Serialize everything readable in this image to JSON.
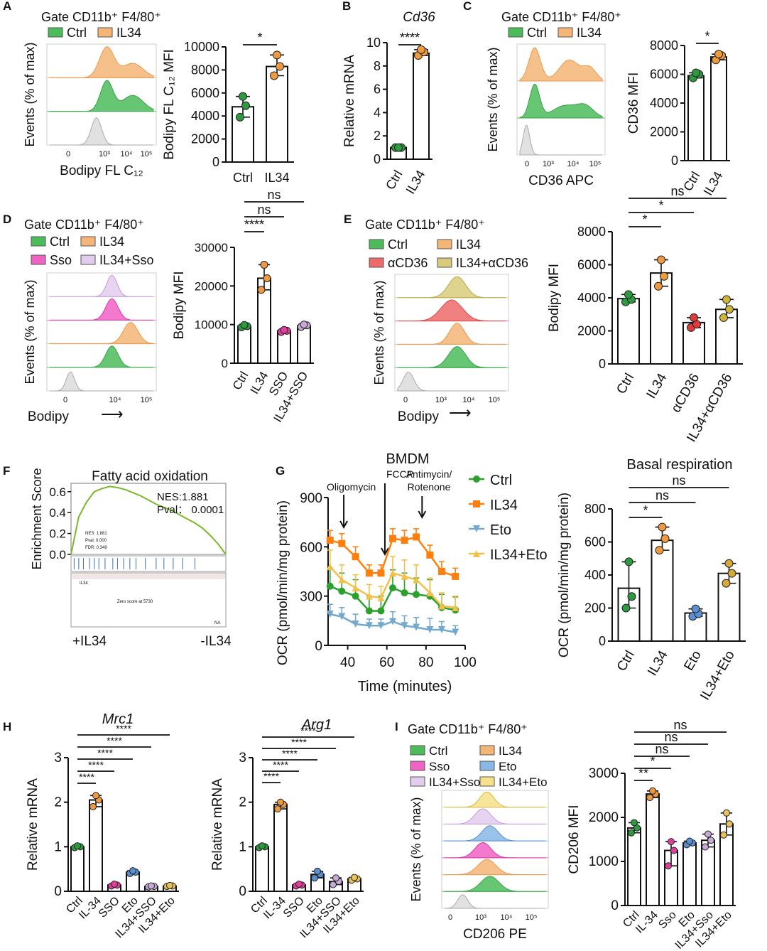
{
  "chart_data": [
    {
      "type": "histogram",
      "panel": "A",
      "title": "Gate CD11b⁺ F4/80⁺",
      "legend": [
        {
          "name": "Ctrl",
          "color": "#4cbc5a"
        },
        {
          "name": "IL34",
          "color": "#f5b577"
        }
      ],
      "xlabel": "Bodipy FL C₁₂",
      "ylabel": "Events (% of max)",
      "x_ticks": [
        "0",
        "10³",
        "10⁴",
        "10⁵"
      ]
    },
    {
      "type": "bar",
      "panel": "A",
      "categories": [
        "Ctrl",
        "IL34"
      ],
      "values": [
        4800,
        8300
      ],
      "points": [
        [
          3900,
          4900,
          5700
        ],
        [
          7500,
          8300,
          9300
        ]
      ],
      "colors": [
        "#2e9a40",
        "#ef9a3e"
      ],
      "ylabel": "Bodipy FL C₁₂ MFI",
      "ylim": [
        0,
        10000
      ],
      "yticks": [
        0,
        2000,
        4000,
        6000,
        8000,
        10000
      ],
      "significance": [
        {
          "label": "*",
          "from": 0,
          "to": 1
        }
      ]
    },
    {
      "type": "bar",
      "panel": "B",
      "title": "Cd36",
      "categories": [
        "Ctrl",
        "IL34"
      ],
      "values": [
        1.0,
        9.1
      ],
      "points": [
        [
          1.0,
          1.0,
          1.0
        ],
        [
          8.9,
          9.2,
          9.4
        ]
      ],
      "colors": [
        "#2e9a40",
        "#ef9a3e"
      ],
      "ylabel": "Relative mRNA",
      "ylim": [
        0,
        10
      ],
      "yticks": [
        0,
        2,
        4,
        6,
        8,
        10
      ],
      "significance": [
        {
          "label": "****",
          "from": 0,
          "to": 1
        }
      ]
    },
    {
      "type": "histogram",
      "panel": "C",
      "title": "Gate CD11b⁺ F4/80⁺",
      "legend": [
        {
          "name": "Ctrl",
          "color": "#4cbc5a"
        },
        {
          "name": "IL34",
          "color": "#f5b577"
        }
      ],
      "xlabel": "CD36 APC",
      "ylabel": "Events (% of max)",
      "x_ticks": [
        "0",
        "10³",
        "10⁴",
        "10⁵"
      ]
    },
    {
      "type": "bar",
      "panel": "C",
      "categories": [
        "Ctrl",
        "IL34"
      ],
      "values": [
        5900,
        7200
      ],
      "points": [
        [
          5750,
          6000,
          6100
        ],
        [
          7000,
          7300,
          7400
        ]
      ],
      "colors": [
        "#2e9a40",
        "#ef9a3e"
      ],
      "ylabel": "CD36 MFI",
      "ylim": [
        0,
        8000
      ],
      "yticks": [
        0,
        2000,
        4000,
        6000,
        8000
      ],
      "significance": [
        {
          "label": "*",
          "from": 0,
          "to": 1
        }
      ]
    },
    {
      "type": "histogram",
      "panel": "D",
      "title": "Gate CD11b⁺ F4/80⁺",
      "legend": [
        {
          "name": "Ctrl",
          "color": "#4cbc5a"
        },
        {
          "name": "IL34",
          "color": "#f5b577"
        },
        {
          "name": "Sso",
          "color": "#f062c4"
        },
        {
          "name": "IL34+Sso",
          "color": "#e3cdee"
        }
      ],
      "xlabel": "Bodipy",
      "ylabel": "Events (% of max)",
      "x_ticks": [
        "0",
        "10⁴",
        "10⁵"
      ]
    },
    {
      "type": "bar",
      "panel": "D",
      "categories": [
        "Ctrl",
        "IL34",
        "SSO",
        "IL34+SSO"
      ],
      "values": [
        9600,
        22000,
        8400,
        9700
      ],
      "points": [
        [
          9300,
          9600,
          9900
        ],
        [
          19000,
          22000,
          25500
        ],
        [
          8100,
          8400,
          8600
        ],
        [
          9400,
          9800,
          10000
        ]
      ],
      "colors": [
        "#2e9a40",
        "#ef9a3e",
        "#e0409c",
        "#c7a9d6"
      ],
      "ylabel": "Bodipy MFI",
      "ylim": [
        0,
        30000
      ],
      "yticks": [
        0,
        10000,
        20000,
        30000
      ],
      "significance": [
        {
          "label": "****",
          "from": 0,
          "to": 1
        },
        {
          "label": "ns",
          "from": 0,
          "to": 2
        },
        {
          "label": "ns",
          "from": 0,
          "to": 3
        }
      ]
    },
    {
      "type": "histogram",
      "panel": "E",
      "title": "Gate CD11b⁺ F4/80⁺",
      "legend": [
        {
          "name": "Ctrl",
          "color": "#4cbc5a"
        },
        {
          "name": "IL34",
          "color": "#f5b577"
        },
        {
          "name": "αCD36",
          "color": "#ee6b6b"
        },
        {
          "name": "IL34+αCD36",
          "color": "#d8cc7c"
        }
      ],
      "xlabel": "Bodipy",
      "ylabel": "Events (% of max)",
      "x_ticks": [
        "0",
        "10³",
        "10⁴",
        "10⁵"
      ]
    },
    {
      "type": "bar",
      "panel": "E",
      "categories": [
        "Ctrl",
        "IL34",
        "αCD36",
        "IL34+αCD36"
      ],
      "values": [
        3950,
        5500,
        2500,
        3300
      ],
      "points": [
        [
          3750,
          3900,
          4200
        ],
        [
          4700,
          5300,
          6300
        ],
        [
          2200,
          2400,
          2800
        ],
        [
          2800,
          3300,
          3900
        ]
      ],
      "colors": [
        "#2e9a40",
        "#ef9a3e",
        "#e03b3b",
        "#cdb43a"
      ],
      "ylabel": "Bodipy MFI",
      "ylim": [
        0,
        8000
      ],
      "yticks": [
        0,
        2000,
        4000,
        6000,
        8000
      ],
      "significance": [
        {
          "label": "*",
          "from": 0,
          "to": 1
        },
        {
          "label": "*",
          "from": 0,
          "to": 2
        },
        {
          "label": "ns",
          "from": 0,
          "to": 3
        }
      ]
    },
    {
      "type": "line",
      "panel": "F",
      "title": "Fatty acid oxidation",
      "ylabel": "Enrichment Score",
      "yticks": [
        0.0,
        0.2,
        0.4,
        0.6
      ],
      "ylim": [
        0,
        0.68
      ],
      "annotations": [
        "NES:1.881",
        "Pval： 0.0001"
      ],
      "small_text": [
        "NES: 1.881",
        "Pval: 0.000",
        "FDR: 0.349",
        "Zero score at 5730",
        "IL34",
        "NA"
      ],
      "x_ends": [
        "+IL34",
        "-IL34"
      ],
      "x": [
        0,
        1,
        2,
        3,
        4,
        5,
        6,
        7,
        8,
        9,
        10,
        11,
        12,
        13,
        14,
        15,
        16,
        17,
        18,
        19,
        20
      ],
      "values": [
        0.0,
        0.36,
        0.5,
        0.6,
        0.63,
        0.65,
        0.64,
        0.62,
        0.59,
        0.56,
        0.52,
        0.48,
        0.45,
        0.42,
        0.38,
        0.34,
        0.3,
        0.25,
        0.18,
        0.1,
        0.0
      ]
    },
    {
      "type": "line",
      "panel": "G",
      "title": "BMDM",
      "xlabel": "Time (minutes)",
      "ylabel": "OCR (pmol/min/mg protein)",
      "xlim": [
        30,
        100
      ],
      "xticks": [
        40,
        60,
        80,
        100
      ],
      "ylim": [
        0,
        900
      ],
      "yticks": [
        0,
        300,
        600,
        900
      ],
      "annotations": [
        {
          "label": "Oligomycin",
          "x": 38
        },
        {
          "label": "FCCP",
          "x": 59
        },
        {
          "label": "Antimycin/ Rotenone",
          "x": 78
        }
      ],
      "x": [
        31,
        37,
        44,
        51,
        57,
        63,
        69,
        75,
        82,
        88,
        95
      ],
      "series": [
        {
          "name": "Ctrl",
          "color": "#2ca02c",
          "marker": "circle",
          "values": [
            360,
            330,
            300,
            210,
            210,
            350,
            320,
            310,
            300,
            230,
            215
          ],
          "err": [
            110,
            110,
            100,
            90,
            90,
            110,
            120,
            100,
            100,
            80,
            80
          ]
        },
        {
          "name": "IL34",
          "color": "#ff7f0e",
          "marker": "square",
          "values": [
            640,
            620,
            540,
            440,
            440,
            650,
            640,
            660,
            550,
            450,
            420
          ],
          "err": [
            60,
            60,
            60,
            50,
            50,
            60,
            60,
            50,
            60,
            60,
            50
          ]
        },
        {
          "name": "Eto",
          "color": "#74a9cf",
          "marker": "triangle-down",
          "values": [
            190,
            175,
            130,
            120,
            120,
            145,
            120,
            110,
            95,
            95,
            80
          ],
          "err": [
            60,
            55,
            60,
            40,
            40,
            60,
            60,
            60,
            70,
            50,
            40
          ]
        },
        {
          "name": "IL34+Eto",
          "color": "#f2c14b",
          "marker": "triangle",
          "values": [
            480,
            400,
            350,
            300,
            290,
            440,
            420,
            400,
            320,
            240,
            230
          ],
          "err": [
            100,
            90,
            80,
            70,
            70,
            100,
            100,
            90,
            90,
            80,
            70
          ]
        }
      ]
    },
    {
      "type": "bar",
      "panel": "G",
      "title": "Basal respiration",
      "categories": [
        "Ctrl",
        "IL34",
        "Eto",
        "IL34+Eto"
      ],
      "values": [
        320,
        610,
        170,
        410
      ],
      "points": [
        [
          200,
          270,
          480
        ],
        [
          550,
          620,
          690
        ],
        [
          150,
          165,
          195
        ],
        [
          350,
          410,
          470
        ]
      ],
      "colors": [
        "#2e9a40",
        "#ef9a3e",
        "#5b8fd0",
        "#d6a93a"
      ],
      "ylabel": "OCR (pmol/min/mg protein)",
      "ylim": [
        0,
        800
      ],
      "yticks": [
        0,
        200,
        400,
        600,
        800
      ],
      "significance": [
        {
          "label": "*",
          "from": 0,
          "to": 1
        },
        {
          "label": "ns",
          "from": 0,
          "to": 2
        },
        {
          "label": "ns",
          "from": 0,
          "to": 3
        }
      ]
    },
    {
      "type": "bar",
      "panel": "H",
      "title": "Mrc1",
      "categories": [
        "Ctrl",
        "IL-34",
        "SSO",
        "Eto",
        "IL34+SSO",
        "IL34+Eto"
      ],
      "values": [
        1.0,
        2.05,
        0.14,
        0.43,
        0.11,
        0.12
      ],
      "points": [
        [
          0.98,
          1.0,
          1.02
        ],
        [
          1.9,
          2.05,
          2.15
        ],
        [
          0.12,
          0.14,
          0.16
        ],
        [
          0.4,
          0.43,
          0.46
        ],
        [
          0.1,
          0.11,
          0.12
        ],
        [
          0.11,
          0.12,
          0.13
        ]
      ],
      "colors": [
        "#2e9a40",
        "#ef9a3e",
        "#e0409c",
        "#5b8fd0",
        "#c7a9d6",
        "#e8c35a"
      ],
      "ylabel": "Relative mRNA",
      "ylim": [
        0,
        3
      ],
      "yticks": [
        0,
        1,
        2,
        3
      ],
      "significance": [
        {
          "label": "****",
          "from": 0,
          "to": 1
        },
        {
          "label": "****",
          "from": 0,
          "to": 2
        },
        {
          "label": "****",
          "from": 0,
          "to": 3
        },
        {
          "label": "****",
          "from": 0,
          "to": 4
        },
        {
          "label": "****",
          "from": 0,
          "to": 5
        }
      ]
    },
    {
      "type": "bar",
      "panel": "H",
      "title": "Arg1",
      "categories": [
        "Ctrl",
        "IL-34",
        "SSO",
        "Eto",
        "IL34+SSO",
        "IL34+Eto"
      ],
      "values": [
        1.0,
        1.95,
        0.14,
        0.38,
        0.22,
        0.28
      ],
      "points": [
        [
          0.98,
          1.0,
          1.02
        ],
        [
          1.85,
          1.95,
          2.0
        ],
        [
          0.12,
          0.14,
          0.16
        ],
        [
          0.3,
          0.38,
          0.45
        ],
        [
          0.15,
          0.22,
          0.3
        ],
        [
          0.25,
          0.28,
          0.31
        ]
      ],
      "colors": [
        "#2e9a40",
        "#ef9a3e",
        "#e0409c",
        "#5b8fd0",
        "#c7a9d6",
        "#e8c35a"
      ],
      "ylabel": "Relative mRNA",
      "ylim": [
        0,
        3
      ],
      "yticks": [
        0,
        1,
        2,
        3
      ],
      "significance": [
        {
          "label": "****",
          "from": 0,
          "to": 1
        },
        {
          "label": "****",
          "from": 0,
          "to": 2
        },
        {
          "label": "****",
          "from": 0,
          "to": 3
        },
        {
          "label": "****",
          "from": 0,
          "to": 4
        },
        {
          "label": "****",
          "from": 0,
          "to": 5
        }
      ]
    },
    {
      "type": "histogram",
      "panel": "I",
      "title": "Gate CD11b⁺ F4/80⁺",
      "legend": [
        {
          "name": "Ctrl",
          "color": "#4cbc5a"
        },
        {
          "name": "IL34",
          "color": "#f5b577"
        },
        {
          "name": "Sso",
          "color": "#f062c4"
        },
        {
          "name": "Eto",
          "color": "#8ab8e6"
        },
        {
          "name": "IL34+Sso",
          "color": "#e3cdee"
        },
        {
          "name": "IL34+Eto",
          "color": "#f6e08a"
        }
      ],
      "xlabel": "CD206 PE",
      "ylabel": "Events (% of max)",
      "x_ticks": [
        "0",
        "10³",
        "10⁴",
        "10⁵"
      ]
    },
    {
      "type": "bar",
      "panel": "I",
      "categories": [
        "Ctrl",
        "IL-34",
        "Sso",
        "Eto",
        "IL34+Sso",
        "IL34+Eto"
      ],
      "values": [
        1760,
        2530,
        1250,
        1420,
        1480,
        1850
      ],
      "points": [
        [
          1650,
          1760,
          1880
        ],
        [
          2450,
          2530,
          2600
        ],
        [
          900,
          1250,
          1450
        ],
        [
          1380,
          1420,
          1460
        ],
        [
          1330,
          1480,
          1620
        ],
        [
          1600,
          1850,
          2100
        ]
      ],
      "colors": [
        "#2e9a40",
        "#ef9a3e",
        "#e0409c",
        "#5b8fd0",
        "#c7a9d6",
        "#e8c35a"
      ],
      "ylabel": "CD206 MFI",
      "ylim": [
        0,
        3000
      ],
      "yticks": [
        0,
        1000,
        2000,
        3000
      ],
      "significance": [
        {
          "label": "**",
          "from": 0,
          "to": 1
        },
        {
          "label": "*",
          "from": 0,
          "to": 2
        },
        {
          "label": "ns",
          "from": 0,
          "to": 3
        },
        {
          "label": "ns",
          "from": 0,
          "to": 4
        },
        {
          "label": "ns",
          "from": 0,
          "to": 5
        }
      ]
    }
  ],
  "arrow_glyph": "⟶"
}
